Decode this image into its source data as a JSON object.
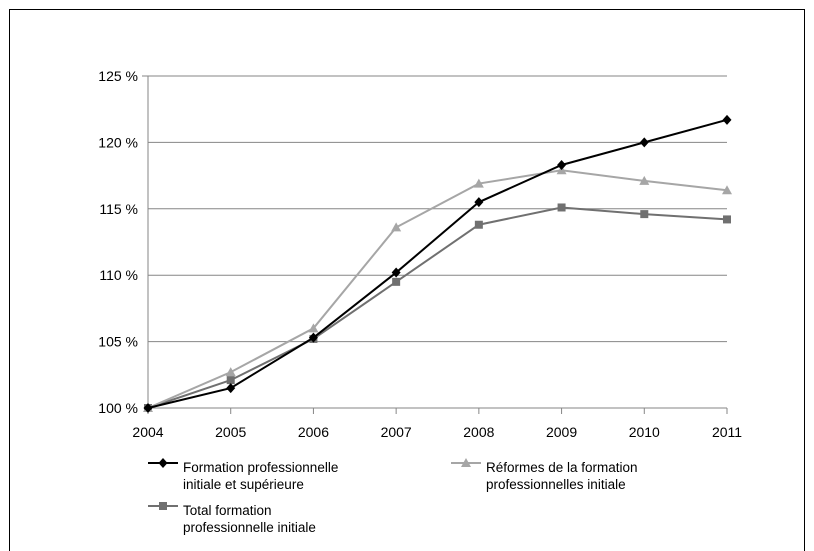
{
  "chart_data": {
    "type": "line",
    "title": "",
    "xlabel": "",
    "ylabel": "",
    "x": [
      "2004",
      "2005",
      "2006",
      "2007",
      "2008",
      "2009",
      "2010",
      "2011"
    ],
    "ylim": [
      100,
      125
    ],
    "yticks": [
      100,
      105,
      110,
      115,
      120,
      125
    ],
    "ytick_labels": [
      "100 %",
      "105 %",
      "110 %",
      "115 %",
      "120 %",
      "125 %"
    ],
    "grid": "horizontal",
    "legend_position": "bottom",
    "series": [
      {
        "name_lines": [
          "Formation professionnelle",
          "initiale et supérieure"
        ],
        "values": [
          100,
          101.5,
          105.3,
          110.2,
          115.5,
          118.3,
          120.0,
          121.7
        ],
        "color": "#000000",
        "marker": "diamond"
      },
      {
        "name_lines": [
          "Réformes de la formation",
          "professionnelles initiale"
        ],
        "values": [
          100,
          102.7,
          106.0,
          113.6,
          116.9,
          117.9,
          117.1,
          116.4
        ],
        "color": "#a6a6a6",
        "marker": "triangle"
      },
      {
        "name_lines": [
          "Total formation",
          "professionnelle initiale"
        ],
        "values": [
          100,
          102.1,
          105.2,
          109.5,
          113.8,
          115.1,
          114.6,
          114.2
        ],
        "color": "#707070",
        "marker": "square"
      }
    ]
  }
}
